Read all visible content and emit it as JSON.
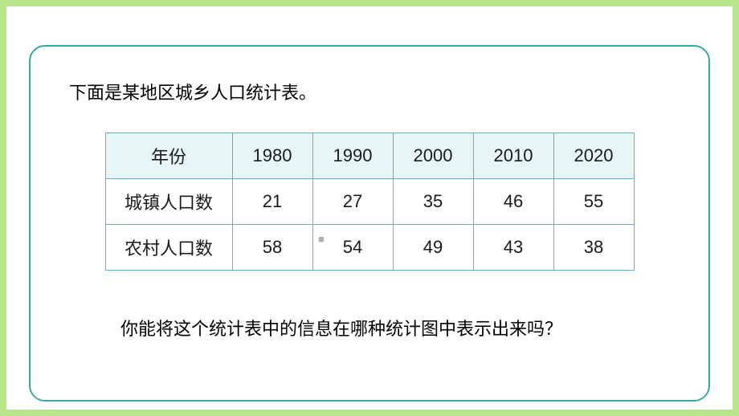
{
  "layout": {
    "page_bg": "#b8e68a",
    "inner_bg": "#ffffff",
    "border_color": "#3ba89f",
    "border_radius": 20
  },
  "intro": "下面是某地区城乡人口统计表。",
  "table": {
    "header_bg": "#e8f5f7",
    "border_color": "#5bb8c4",
    "header_label": "年份",
    "years": [
      "1980",
      "1990",
      "2000",
      "2010",
      "2020"
    ],
    "rows": [
      {
        "label": "城镇人口数",
        "values": [
          "21",
          "27",
          "35",
          "46",
          "55"
        ]
      },
      {
        "label": "农村人口数",
        "values": [
          "58",
          "54",
          "49",
          "43",
          "38"
        ]
      }
    ]
  },
  "watermark": "■",
  "question": "你能将这个统计表中的信息在哪种统计图中表示出来吗？"
}
